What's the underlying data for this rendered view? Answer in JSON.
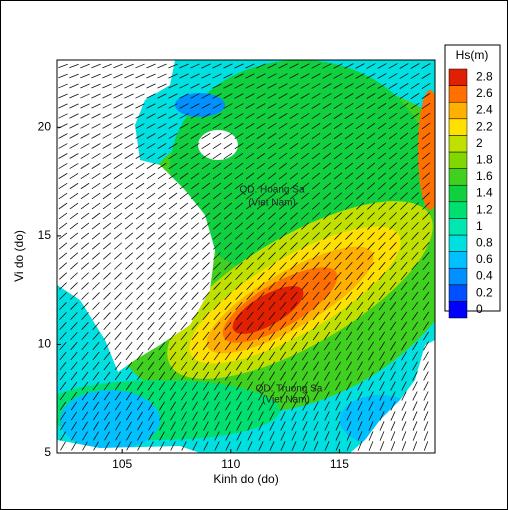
{
  "chart_data": {
    "type": "heatmap",
    "xlabel": "Kinh do (do)",
    "ylabel": "Vi do (do)",
    "xlim": [
      102,
      119.4
    ],
    "ylim": [
      5,
      23.1
    ],
    "xticks": [
      105,
      110,
      115
    ],
    "yticks": [
      5,
      10,
      15,
      20
    ],
    "colorbar": {
      "title": "Hs(m)",
      "levels": [
        0,
        0.2,
        0.4,
        0.6,
        0.8,
        1,
        1.2,
        1.4,
        1.6,
        1.8,
        2,
        2.2,
        2.4,
        2.6,
        2.8
      ],
      "colors": [
        "#0000ff",
        "#0050ff",
        "#0090ff",
        "#00c0ff",
        "#00e0e0",
        "#00e8b0",
        "#00e070",
        "#10d040",
        "#40d020",
        "#80d800",
        "#c0e000",
        "#ffe000",
        "#ffb000",
        "#ff7000",
        "#e02000"
      ]
    },
    "annotations": [
      "QD. Hoang Sa",
      "(Viet Nam)",
      "QD. Truong Sa",
      "(Viet Nam)"
    ]
  }
}
